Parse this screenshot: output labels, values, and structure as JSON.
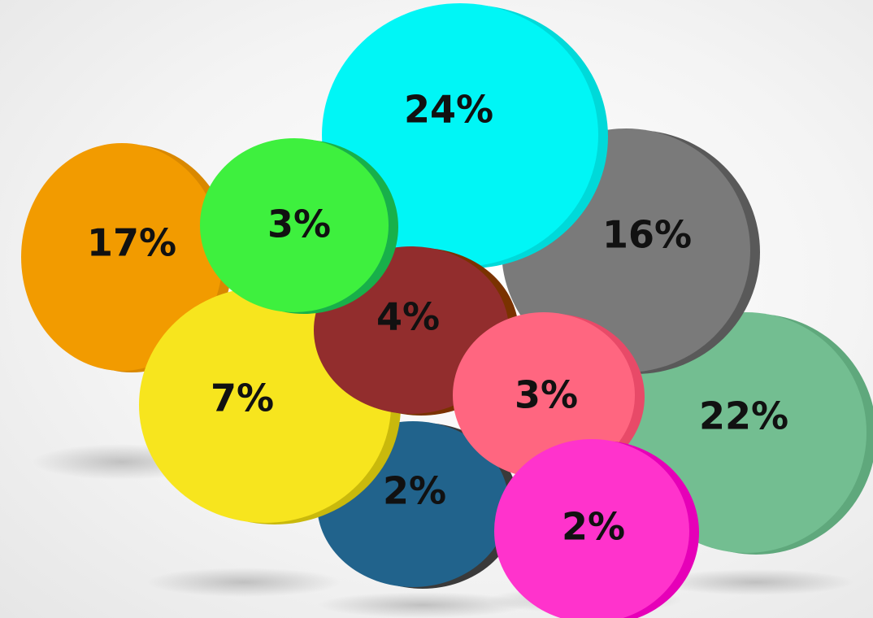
{
  "chart_data": {
    "type": "bubble",
    "title": "",
    "items": [
      {
        "label": "17%",
        "value": 17,
        "color": "#F29B00",
        "shade": "#D98800"
      },
      {
        "label": "22%",
        "value": 22,
        "color": "#73BE91",
        "shade": "#5FA87C"
      },
      {
        "label": "2%",
        "value": 2,
        "color": "#21638C",
        "shade": "#3A3A3A"
      },
      {
        "label": "7%",
        "value": 7,
        "color": "#F7E51E",
        "shade": "#C9B90C"
      },
      {
        "label": "16%",
        "value": 16,
        "color": "#7A7A7A",
        "shade": "#595959"
      },
      {
        "label": "24%",
        "value": 24,
        "color": "#00F6F6",
        "shade": "#00D9D9"
      },
      {
        "label": "4%",
        "value": 4,
        "color": "#922D2D",
        "shade": "#7A3200"
      },
      {
        "label": "3%",
        "value": 3,
        "color": "#3EF03E",
        "shade": "#18B04A"
      },
      {
        "label": "3%",
        "value": 3,
        "color": "#FF6680",
        "shade": "#E84A68"
      },
      {
        "label": "2%",
        "value": 2,
        "color": "#FF33CC",
        "shade": "#E600B8"
      }
    ]
  }
}
